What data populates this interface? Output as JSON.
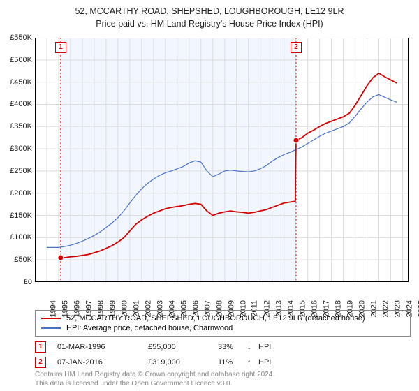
{
  "title": {
    "line1": "52, MCCARTHY ROAD, SHEPSHED, LOUGHBOROUGH, LE12 9LR",
    "line2": "Price paid vs. HM Land Registry's House Price Index (HPI)"
  },
  "chart": {
    "type": "line",
    "background_color": "#ffffff",
    "shaded_region": {
      "x_from": 1996.17,
      "x_to": 2016.02,
      "fill": "#f1f6ff"
    },
    "xlim": [
      1994,
      2025.5
    ],
    "ylim": [
      0,
      550000
    ],
    "ytick_step": 50000,
    "ytick_prefix": "£",
    "ytick_suffix": "K",
    "ytick_divisor": 1000,
    "xticks": [
      1994,
      1995,
      1996,
      1997,
      1998,
      1999,
      2000,
      2001,
      2002,
      2003,
      2004,
      2005,
      2006,
      2007,
      2008,
      2009,
      2010,
      2011,
      2012,
      2013,
      2014,
      2015,
      2016,
      2017,
      2018,
      2019,
      2020,
      2021,
      2022,
      2023,
      2024,
      2025
    ],
    "grid_color": "#dddddd",
    "axis_color": "#000000",
    "series": [
      {
        "name": "price_paid",
        "color": "#d40000",
        "line_width": 1.8,
        "legend": "52, MCCARTHY ROAD, SHEPSHED, LOUGHBOROUGH, LE12 9LR (detached house)",
        "points": [
          [
            1996.17,
            55000
          ],
          [
            1996.5,
            55000
          ],
          [
            1997,
            57000
          ],
          [
            1997.5,
            58000
          ],
          [
            1998,
            60000
          ],
          [
            1998.5,
            62000
          ],
          [
            1999,
            66000
          ],
          [
            1999.5,
            70000
          ],
          [
            2000,
            76000
          ],
          [
            2000.5,
            82000
          ],
          [
            2001,
            90000
          ],
          [
            2001.5,
            100000
          ],
          [
            2002,
            115000
          ],
          [
            2002.5,
            130000
          ],
          [
            2003,
            140000
          ],
          [
            2003.5,
            148000
          ],
          [
            2004,
            155000
          ],
          [
            2004.5,
            160000
          ],
          [
            2005,
            165000
          ],
          [
            2005.5,
            168000
          ],
          [
            2006,
            170000
          ],
          [
            2006.5,
            172000
          ],
          [
            2007,
            175000
          ],
          [
            2007.5,
            177000
          ],
          [
            2008,
            175000
          ],
          [
            2008.5,
            160000
          ],
          [
            2009,
            150000
          ],
          [
            2009.5,
            155000
          ],
          [
            2010,
            158000
          ],
          [
            2010.5,
            160000
          ],
          [
            2011,
            158000
          ],
          [
            2011.5,
            157000
          ],
          [
            2012,
            155000
          ],
          [
            2012.5,
            157000
          ],
          [
            2013,
            160000
          ],
          [
            2013.5,
            163000
          ],
          [
            2014,
            168000
          ],
          [
            2014.5,
            173000
          ],
          [
            2015,
            178000
          ],
          [
            2015.5,
            180000
          ],
          [
            2015.95,
            182000
          ],
          [
            2016.02,
            319000
          ],
          [
            2016.5,
            325000
          ],
          [
            2017,
            335000
          ],
          [
            2017.5,
            342000
          ],
          [
            2018,
            350000
          ],
          [
            2018.5,
            357000
          ],
          [
            2019,
            362000
          ],
          [
            2019.5,
            367000
          ],
          [
            2020,
            372000
          ],
          [
            2020.5,
            380000
          ],
          [
            2021,
            398000
          ],
          [
            2021.5,
            420000
          ],
          [
            2022,
            442000
          ],
          [
            2022.5,
            460000
          ],
          [
            2023,
            470000
          ],
          [
            2023.5,
            462000
          ],
          [
            2024,
            455000
          ],
          [
            2024.5,
            448000
          ]
        ]
      },
      {
        "name": "hpi",
        "color": "#4a72c8",
        "line_width": 1.2,
        "legend": "HPI: Average price, detached house, Charnwood",
        "points": [
          [
            1995,
            78000
          ],
          [
            1995.5,
            78000
          ],
          [
            1996,
            78000
          ],
          [
            1996.5,
            80000
          ],
          [
            1997,
            83000
          ],
          [
            1997.5,
            87000
          ],
          [
            1998,
            92000
          ],
          [
            1998.5,
            98000
          ],
          [
            1999,
            105000
          ],
          [
            1999.5,
            113000
          ],
          [
            2000,
            123000
          ],
          [
            2000.5,
            133000
          ],
          [
            2001,
            145000
          ],
          [
            2001.5,
            160000
          ],
          [
            2002,
            178000
          ],
          [
            2002.5,
            195000
          ],
          [
            2003,
            210000
          ],
          [
            2003.5,
            222000
          ],
          [
            2004,
            232000
          ],
          [
            2004.5,
            240000
          ],
          [
            2005,
            246000
          ],
          [
            2005.5,
            250000
          ],
          [
            2006,
            255000
          ],
          [
            2006.5,
            260000
          ],
          [
            2007,
            268000
          ],
          [
            2007.5,
            273000
          ],
          [
            2008,
            270000
          ],
          [
            2008.5,
            250000
          ],
          [
            2009,
            237000
          ],
          [
            2009.5,
            243000
          ],
          [
            2010,
            250000
          ],
          [
            2010.5,
            252000
          ],
          [
            2011,
            250000
          ],
          [
            2011.5,
            249000
          ],
          [
            2012,
            248000
          ],
          [
            2012.5,
            250000
          ],
          [
            2013,
            255000
          ],
          [
            2013.5,
            262000
          ],
          [
            2014,
            272000
          ],
          [
            2014.5,
            280000
          ],
          [
            2015,
            287000
          ],
          [
            2015.5,
            292000
          ],
          [
            2016,
            298000
          ],
          [
            2016.5,
            304000
          ],
          [
            2017,
            312000
          ],
          [
            2017.5,
            320000
          ],
          [
            2018,
            328000
          ],
          [
            2018.5,
            335000
          ],
          [
            2019,
            340000
          ],
          [
            2019.5,
            345000
          ],
          [
            2020,
            350000
          ],
          [
            2020.5,
            358000
          ],
          [
            2021,
            373000
          ],
          [
            2021.5,
            390000
          ],
          [
            2022,
            405000
          ],
          [
            2022.5,
            417000
          ],
          [
            2023,
            422000
          ],
          [
            2023.5,
            416000
          ],
          [
            2024,
            410000
          ],
          [
            2024.5,
            405000
          ]
        ]
      }
    ],
    "markers": [
      {
        "id": "1",
        "x": 1996.17,
        "y": 55000,
        "color": "#d40000",
        "label_y_top": true
      },
      {
        "id": "2",
        "x": 2016.02,
        "y": 319000,
        "color": "#d40000",
        "label_y_top": true
      }
    ],
    "marker_vlines_color": "#d40000",
    "marker_vlines_dash": "2,3"
  },
  "legend": {
    "border_color": "#888888",
    "items": [
      {
        "color": "#d40000",
        "text_path": "chart.series.0.legend"
      },
      {
        "color": "#4a72c8",
        "text_path": "chart.series.1.legend"
      }
    ]
  },
  "events": [
    {
      "id": "1",
      "color": "#d40000",
      "date": "01-MAR-1996",
      "price": "£55,000",
      "pct": "33%",
      "arrow": "↓",
      "suffix": "HPI"
    },
    {
      "id": "2",
      "color": "#d40000",
      "date": "07-JAN-2016",
      "price": "£319,000",
      "pct": "11%",
      "arrow": "↑",
      "suffix": "HPI"
    }
  ],
  "footer": {
    "line1": "Contains HM Land Registry data © Crown copyright and database right 2024.",
    "line2": "This data is licensed under the Open Government Licence v3.0."
  }
}
